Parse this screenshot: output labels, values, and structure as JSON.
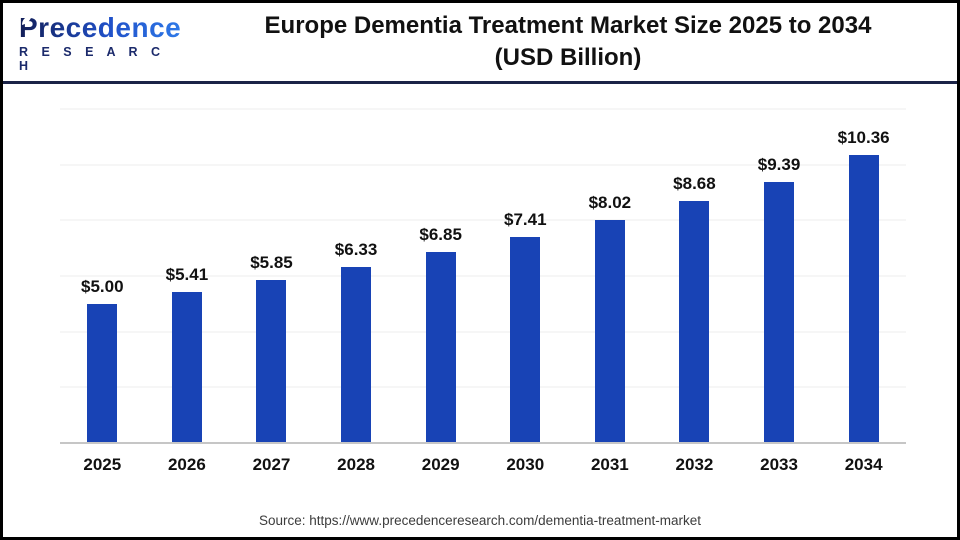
{
  "header": {
    "logo_name": "Precedence",
    "logo_sub": "R E S E A R C H",
    "title_line1": "Europe Dementia Treatment Market Size 2025 to 2034",
    "title_line2": "(USD Billion)"
  },
  "chart_data": {
    "type": "bar",
    "title": "Europe Dementia Treatment Market Size 2025 to 2034 (USD Billion)",
    "categories": [
      "2025",
      "2026",
      "2027",
      "2028",
      "2029",
      "2030",
      "2031",
      "2032",
      "2033",
      "2034"
    ],
    "values": [
      5.0,
      5.41,
      5.85,
      6.33,
      6.85,
      7.41,
      8.02,
      8.68,
      9.39,
      10.36
    ],
    "value_labels": [
      "$5.00",
      "$5.41",
      "$5.85",
      "$6.33",
      "$6.85",
      "$7.41",
      "$8.02",
      "$8.68",
      "$9.39",
      "$10.36"
    ],
    "xlabel": "",
    "ylabel": "",
    "ylim": [
      0,
      12
    ],
    "gridline_values": [
      2,
      4,
      6,
      8,
      10,
      12
    ],
    "grid": true,
    "legend": false,
    "bar_color": "#1843B5"
  },
  "footer": {
    "source": "Source: https://www.precedenceresearch.com/dementia-treatment-market"
  },
  "colors": {
    "bar": "#1843B5",
    "header_divider": "#1B2347",
    "frame_border": "#000000",
    "logo_navy": "#1B2A6B",
    "logo_blue": "#2E79E8",
    "axis_line": "#C6C6C6",
    "gridline": "#ECECEC",
    "title_text": "#111111",
    "source_text": "#3C3C3C"
  }
}
